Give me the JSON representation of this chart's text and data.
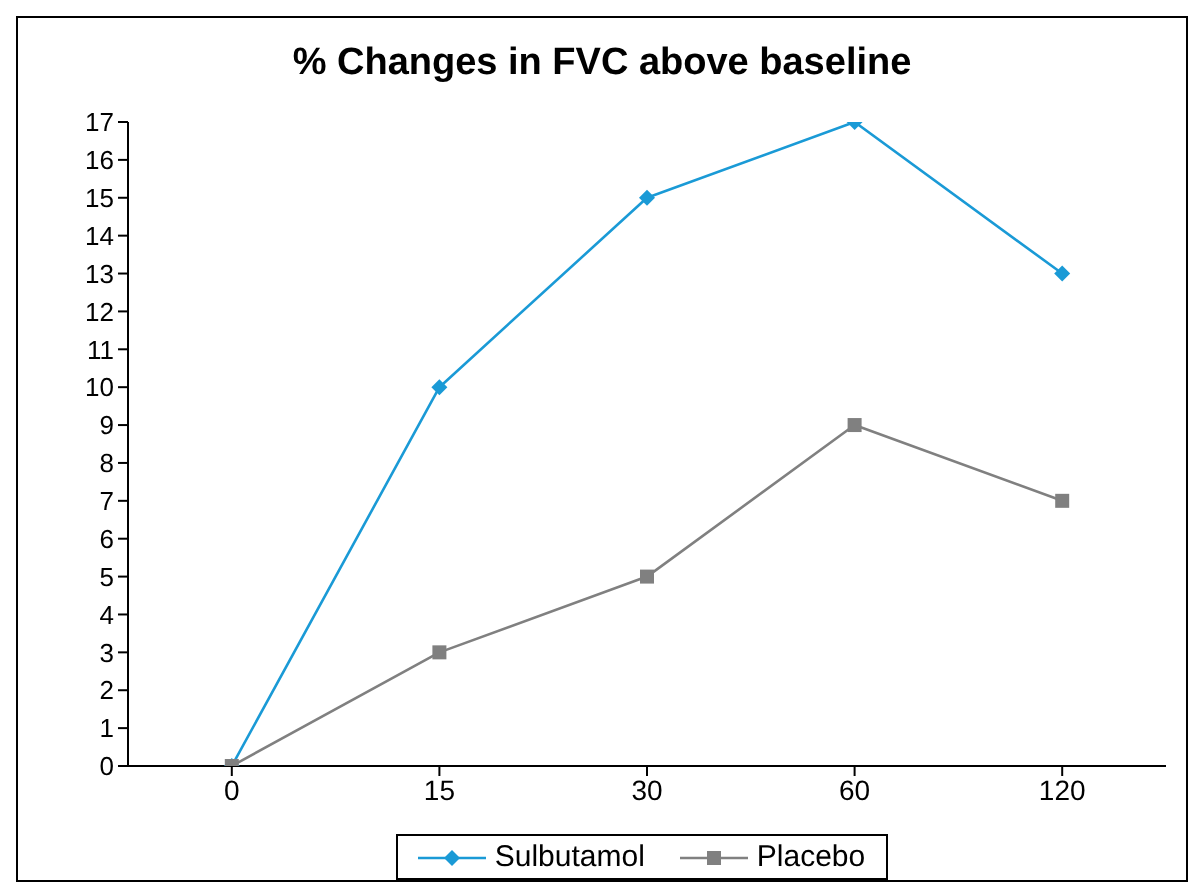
{
  "chart_data": {
    "type": "line",
    "title": "% Changes in FVC above baseline",
    "categories": [
      "0",
      "15",
      "30",
      "60",
      "120"
    ],
    "series": [
      {
        "name": "Sulbutamol",
        "color": "#1a9ad6",
        "values": [
          0,
          10,
          15,
          17,
          13
        ],
        "marker": "diamond"
      },
      {
        "name": "Placebo",
        "color": "#808080",
        "values": [
          0,
          3,
          5,
          9,
          7
        ],
        "marker": "square"
      }
    ],
    "ylim": [
      0,
      17
    ],
    "yticks": [
      0,
      1,
      2,
      3,
      4,
      5,
      6,
      7,
      8,
      9,
      10,
      11,
      12,
      13,
      14,
      15,
      16,
      17
    ],
    "grid": false,
    "legend": "bottom",
    "line_style": "solid"
  }
}
